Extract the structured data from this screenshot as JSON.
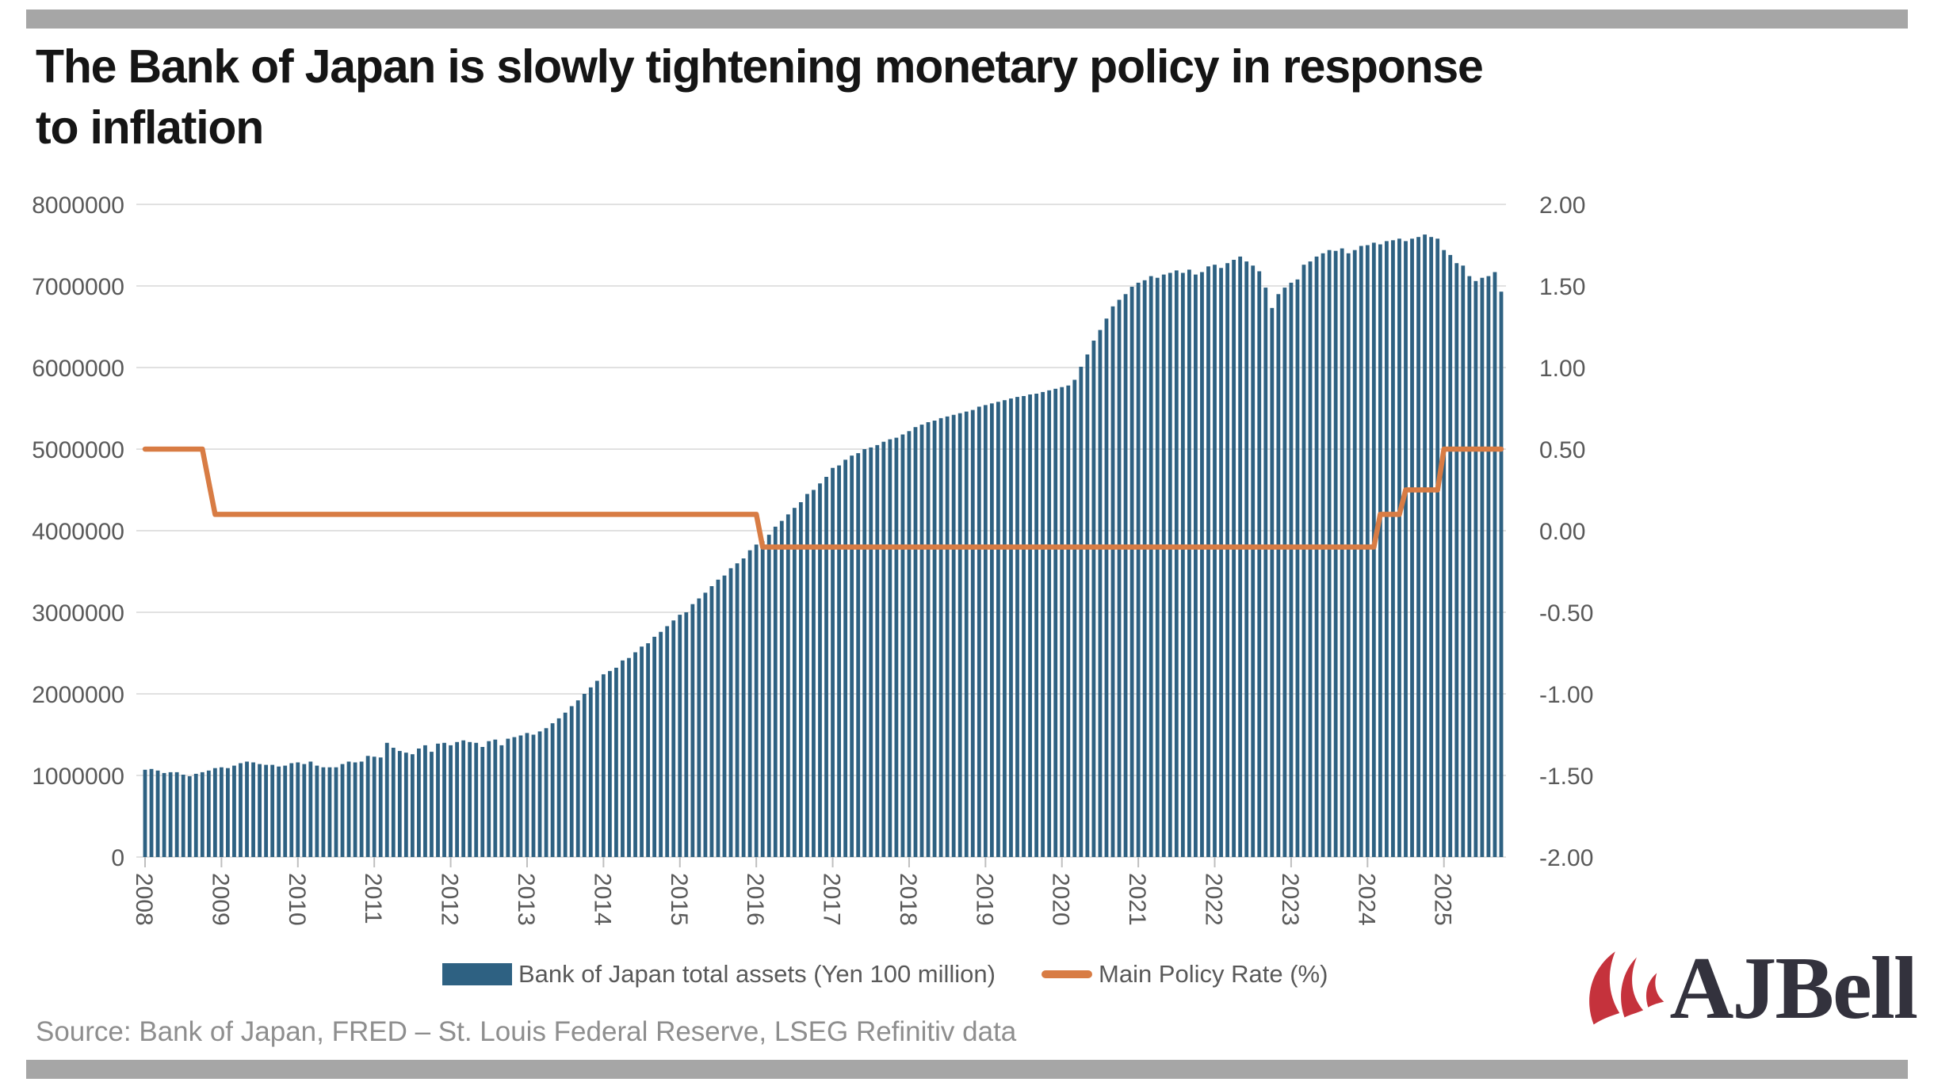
{
  "title": {
    "line1": "The Bank of Japan is slowly tightening monetary policy in response",
    "line2": "to inflation"
  },
  "legend": {
    "assets": "Bank of Japan total assets (Yen 100 million)",
    "rate": "Main Policy Rate (%)"
  },
  "source": "Source: Bank of Japan, FRED – St. Louis Federal Reserve, LSEG Refinitiv data",
  "logo_text": "AJBell",
  "colors": {
    "bar": "#2E6182",
    "line": "#D87C44",
    "grid": "#e1e1e1",
    "tick": "#bfbfbf",
    "axis_text": "#595959",
    "accent_bar": "#a6a6a6",
    "logo_red": "#c5323c",
    "logo_navy": "#33323d"
  },
  "chart_data": {
    "type": "combo",
    "x_axis": {
      "start": "2008-01",
      "end": "2025-10",
      "frequency": "monthly",
      "years": [
        "2008",
        "2009",
        "2010",
        "2011",
        "2012",
        "2013",
        "2014",
        "2015",
        "2016",
        "2017",
        "2018",
        "2019",
        "2020",
        "2021",
        "2022",
        "2023",
        "2024",
        "2025"
      ]
    },
    "left_axis": {
      "min": 0,
      "max": 8000000,
      "step": 1000000,
      "ticks": [
        "8000000",
        "7000000",
        "6000000",
        "5000000",
        "4000000",
        "3000000",
        "2000000",
        "1000000",
        "0"
      ]
    },
    "right_axis": {
      "min": -2,
      "max": 2,
      "step": 0.5,
      "ticks": [
        "2.00",
        "1.50",
        "1.00",
        "0.50",
        "0.00",
        "-0.50",
        "-1.00",
        "-1.50",
        "-2.00"
      ]
    },
    "series": [
      {
        "name": "Bank of Japan total assets (Yen 100 million)",
        "type": "bar",
        "axis": "left",
        "color": "#2E6182",
        "values": [
          1070000,
          1080000,
          1060000,
          1030000,
          1040000,
          1040000,
          1010000,
          990000,
          1020000,
          1040000,
          1060000,
          1090000,
          1100000,
          1090000,
          1120000,
          1150000,
          1170000,
          1160000,
          1140000,
          1130000,
          1130000,
          1110000,
          1120000,
          1150000,
          1160000,
          1140000,
          1170000,
          1120000,
          1100000,
          1100000,
          1100000,
          1140000,
          1170000,
          1160000,
          1170000,
          1240000,
          1230000,
          1220000,
          1400000,
          1340000,
          1300000,
          1280000,
          1260000,
          1330000,
          1370000,
          1290000,
          1390000,
          1400000,
          1370000,
          1410000,
          1430000,
          1410000,
          1400000,
          1350000,
          1420000,
          1440000,
          1370000,
          1450000,
          1470000,
          1490000,
          1520000,
          1500000,
          1540000,
          1580000,
          1640000,
          1700000,
          1770000,
          1850000,
          1920000,
          2000000,
          2080000,
          2160000,
          2240000,
          2280000,
          2320000,
          2410000,
          2440000,
          2510000,
          2580000,
          2620000,
          2700000,
          2760000,
          2830000,
          2900000,
          2970000,
          3000000,
          3100000,
          3170000,
          3240000,
          3320000,
          3400000,
          3450000,
          3540000,
          3600000,
          3660000,
          3760000,
          3830000,
          3870000,
          3950000,
          4050000,
          4120000,
          4200000,
          4280000,
          4350000,
          4450000,
          4500000,
          4580000,
          4660000,
          4770000,
          4800000,
          4870000,
          4920000,
          4950000,
          5000000,
          5020000,
          5050000,
          5090000,
          5120000,
          5140000,
          5180000,
          5220000,
          5270000,
          5300000,
          5330000,
          5350000,
          5380000,
          5400000,
          5420000,
          5440000,
          5460000,
          5480000,
          5520000,
          5540000,
          5560000,
          5580000,
          5600000,
          5620000,
          5640000,
          5650000,
          5670000,
          5680000,
          5700000,
          5720000,
          5740000,
          5760000,
          5780000,
          5850000,
          6010000,
          6160000,
          6330000,
          6460000,
          6600000,
          6750000,
          6830000,
          6900000,
          6990000,
          7040000,
          7070000,
          7120000,
          7100000,
          7140000,
          7160000,
          7190000,
          7160000,
          7200000,
          7140000,
          7170000,
          7240000,
          7260000,
          7220000,
          7280000,
          7320000,
          7360000,
          7300000,
          7250000,
          7180000,
          6980000,
          6730000,
          6900000,
          6980000,
          7040000,
          7080000,
          7260000,
          7300000,
          7360000,
          7400000,
          7440000,
          7430000,
          7460000,
          7400000,
          7440000,
          7490000,
          7500000,
          7530000,
          7510000,
          7550000,
          7560000,
          7580000,
          7550000,
          7580000,
          7600000,
          7630000,
          7600000,
          7580000,
          7440000,
          7380000,
          7280000,
          7250000,
          7120000,
          7060000,
          7100000,
          7120000,
          7170000,
          6930000
        ]
      },
      {
        "name": "Main Policy Rate (%)",
        "type": "line",
        "axis": "right",
        "color": "#D87C44",
        "value_runs": [
          {
            "value": 0.5,
            "months": 10
          },
          {
            "value": 0.3,
            "months": 1
          },
          {
            "value": 0.1,
            "months": 86
          },
          {
            "value": -0.1,
            "months": 97
          },
          {
            "value": 0.1,
            "months": 4
          },
          {
            "value": 0.25,
            "months": 6
          },
          {
            "value": 0.5,
            "months": 10
          }
        ]
      }
    ]
  }
}
